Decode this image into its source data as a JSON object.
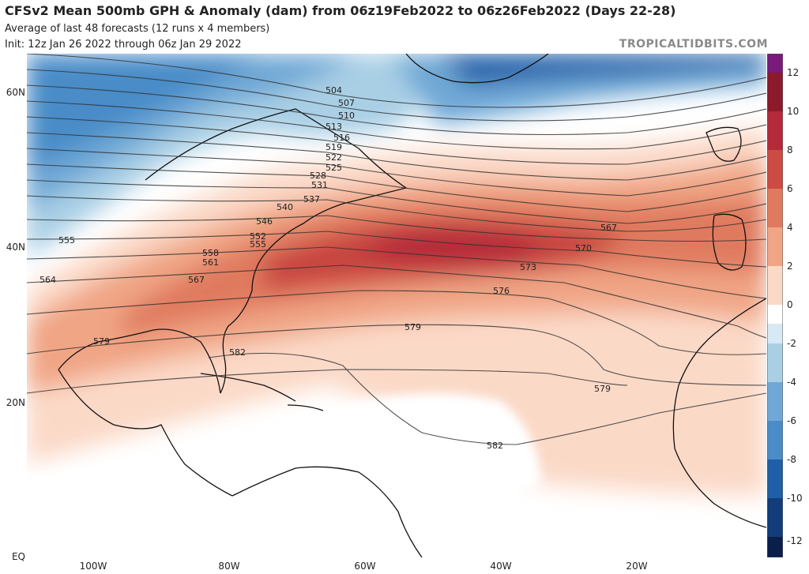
{
  "header": {
    "title": "CFSv2 Mean 500mb GPH & Anomaly (dam) from 06z19Feb2022 to 06z26Feb2022 (Days 22-28)",
    "subtitle": "Average of last 48 forecasts (12 runs x 4 members)",
    "init": "Init: 12z Jan 26 2022 through 06z Jan 29 2022",
    "brand": "TROPICALTIDBITS.COM"
  },
  "axes": {
    "lat_labels": [
      "60N",
      "40N",
      "20N",
      "EQ"
    ],
    "lon_labels": [
      "100W",
      "80W",
      "60W",
      "40W",
      "20W"
    ]
  },
  "colorbar": {
    "labels": [
      "12",
      "10",
      "8",
      "6",
      "4",
      "2",
      "0",
      "-2",
      "-4",
      "-6",
      "-8",
      "-10",
      "-12"
    ]
  },
  "contour_labels": [
    "504",
    "507",
    "510",
    "513",
    "516",
    "519",
    "522",
    "525",
    "528",
    "531",
    "537",
    "540",
    "546",
    "552",
    "555",
    "558",
    "561",
    "567",
    "555",
    "564",
    "567",
    "570",
    "573",
    "576",
    "579",
    "579",
    "582",
    "582",
    "579"
  ],
  "colors": {
    "anom_pos_strong": "#b52a3b",
    "anom_pos_mid": "#e07a5f",
    "anom_pos_weak": "#fbd9c7",
    "anom_neg_weak": "#a9cfe5",
    "anom_neg_strong": "#1f5fa8"
  }
}
